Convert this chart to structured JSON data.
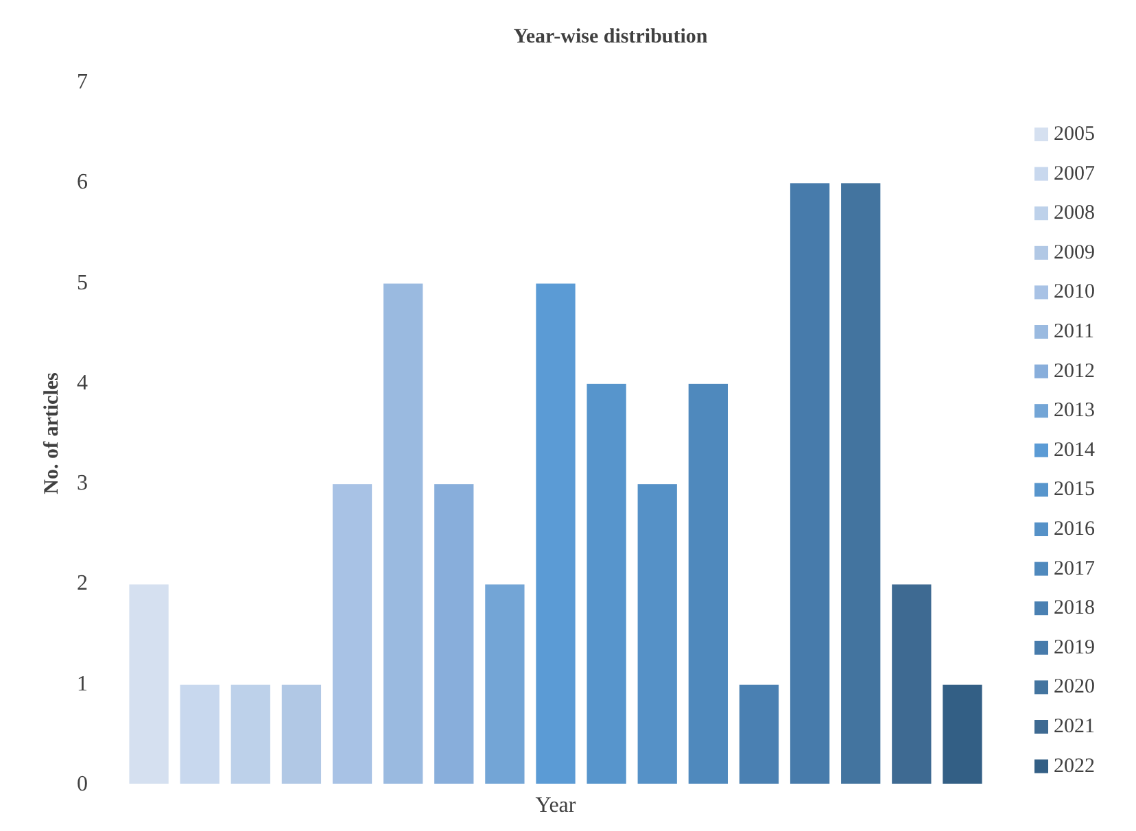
{
  "chart_data": {
    "type": "bar",
    "title": "Year-wise distribution",
    "xlabel": "Year",
    "ylabel": "No. of articles",
    "categories": [
      null,
      null,
      null,
      null,
      null,
      null,
      null,
      null,
      null,
      null,
      null,
      null,
      null,
      null,
      null,
      null,
      null
    ],
    "series": [
      {
        "name": "2005",
        "color": "#d5e0f0",
        "values": [
          2,
          null,
          null,
          null,
          null,
          null,
          null,
          null,
          null,
          null,
          null,
          null,
          null,
          null,
          null,
          null,
          null
        ]
      },
      {
        "name": "2007",
        "color": "#c8d8ee",
        "values": [
          null,
          1,
          null,
          null,
          null,
          null,
          null,
          null,
          null,
          null,
          null,
          null,
          null,
          null,
          null,
          null,
          null
        ]
      },
      {
        "name": "2008",
        "color": "#bdd1ea",
        "values": [
          null,
          null,
          1,
          null,
          null,
          null,
          null,
          null,
          null,
          null,
          null,
          null,
          null,
          null,
          null,
          null,
          null
        ]
      },
      {
        "name": "2009",
        "color": "#b1c8e5",
        "values": [
          null,
          null,
          null,
          1,
          null,
          null,
          null,
          null,
          null,
          null,
          null,
          null,
          null,
          null,
          null,
          null,
          null
        ]
      },
      {
        "name": "2010",
        "color": "#a8c2e5",
        "values": [
          null,
          null,
          null,
          null,
          3,
          null,
          null,
          null,
          null,
          null,
          null,
          null,
          null,
          null,
          null,
          null,
          null
        ]
      },
      {
        "name": "2011",
        "color": "#9abae0",
        "values": [
          null,
          null,
          null,
          null,
          null,
          5,
          null,
          null,
          null,
          null,
          null,
          null,
          null,
          null,
          null,
          null,
          null
        ]
      },
      {
        "name": "2012",
        "color": "#88aedb",
        "values": [
          null,
          null,
          null,
          null,
          null,
          null,
          3,
          null,
          null,
          null,
          null,
          null,
          null,
          null,
          null,
          null,
          null
        ]
      },
      {
        "name": "2013",
        "color": "#73a5d6",
        "values": [
          null,
          null,
          null,
          null,
          null,
          null,
          null,
          2,
          null,
          null,
          null,
          null,
          null,
          null,
          null,
          null,
          null
        ]
      },
      {
        "name": "2014",
        "color": "#5b9bd5",
        "values": [
          null,
          null,
          null,
          null,
          null,
          null,
          null,
          null,
          5,
          null,
          null,
          null,
          null,
          null,
          null,
          null,
          null
        ]
      },
      {
        "name": "2015",
        "color": "#5795cc",
        "values": [
          null,
          null,
          null,
          null,
          null,
          null,
          null,
          null,
          null,
          4,
          null,
          null,
          null,
          null,
          null,
          null,
          null
        ]
      },
      {
        "name": "2016",
        "color": "#5591c7",
        "values": [
          null,
          null,
          null,
          null,
          null,
          null,
          null,
          null,
          null,
          null,
          3,
          null,
          null,
          null,
          null,
          null,
          null
        ]
      },
      {
        "name": "2017",
        "color": "#4f89bd",
        "values": [
          null,
          null,
          null,
          null,
          null,
          null,
          null,
          null,
          null,
          null,
          null,
          4,
          null,
          null,
          null,
          null,
          null
        ]
      },
      {
        "name": "2018",
        "color": "#4a80b2",
        "values": [
          null,
          null,
          null,
          null,
          null,
          null,
          null,
          null,
          null,
          null,
          null,
          null,
          1,
          null,
          null,
          null,
          null
        ]
      },
      {
        "name": "2019",
        "color": "#477bab",
        "values": [
          null,
          null,
          null,
          null,
          null,
          null,
          null,
          null,
          null,
          null,
          null,
          null,
          null,
          6,
          null,
          null,
          null
        ]
      },
      {
        "name": "2020",
        "color": "#43749f",
        "values": [
          null,
          null,
          null,
          null,
          null,
          null,
          null,
          null,
          null,
          null,
          null,
          null,
          null,
          null,
          6,
          null,
          null
        ]
      },
      {
        "name": "2021",
        "color": "#3e6a92",
        "values": [
          null,
          null,
          null,
          null,
          null,
          null,
          null,
          null,
          null,
          null,
          null,
          null,
          null,
          null,
          null,
          2,
          null
        ]
      },
      {
        "name": "2022",
        "color": "#335f85",
        "values": [
          null,
          null,
          null,
          null,
          null,
          null,
          null,
          null,
          null,
          null,
          null,
          null,
          null,
          null,
          null,
          null,
          1
        ]
      }
    ],
    "stacked": true,
    "ylim": [
      0,
      7
    ],
    "yticks": [
      0,
      1,
      2,
      3,
      4,
      5,
      6,
      7
    ],
    "legend": "right"
  }
}
